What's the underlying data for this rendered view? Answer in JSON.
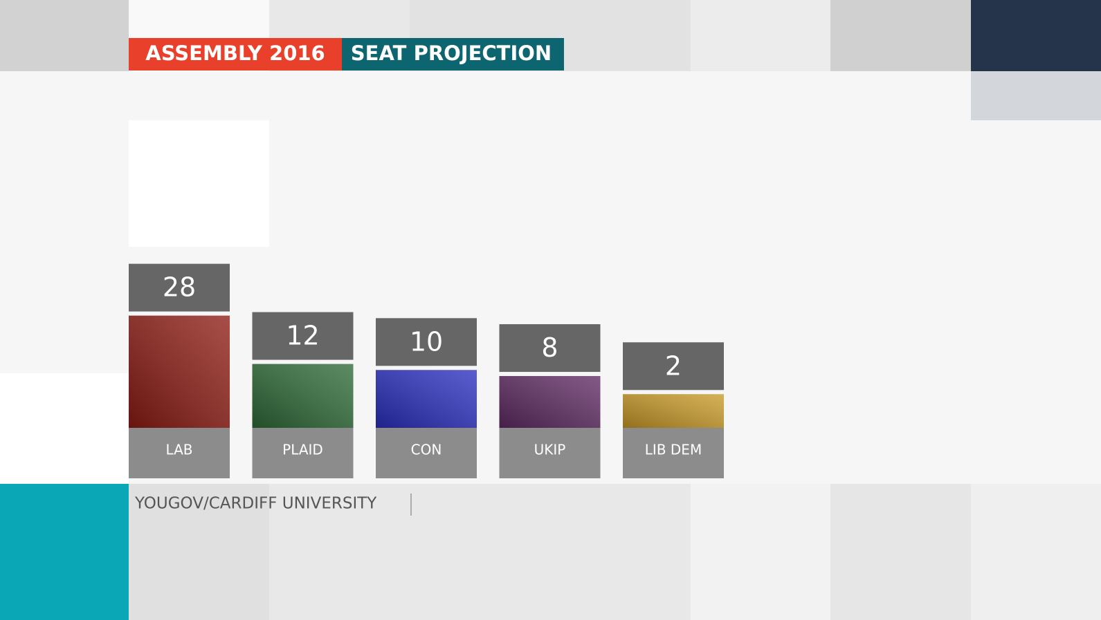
{
  "chart_data": {
    "type": "bar",
    "title": "ASSEMBLY 2016",
    "subtitle": "SEAT PROJECTION",
    "source": "YOUGOV/CARDIFF UNIVERSITY",
    "categories": [
      "LAB",
      "PLAID",
      "CON",
      "UKIP",
      "LIB DEM"
    ],
    "values": [
      28,
      12,
      10,
      8,
      2
    ],
    "colors": [
      "#8e1c14",
      "#2e6b37",
      "#2a2fc0",
      "#5e2a62",
      "#c99a28"
    ]
  }
}
